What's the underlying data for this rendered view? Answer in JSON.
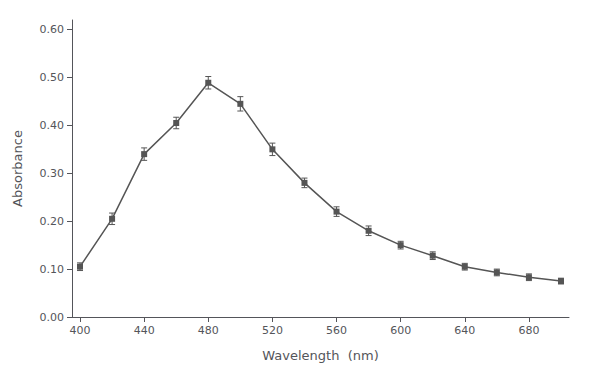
{
  "chart_data": {
    "type": "line",
    "x": [
      400,
      420,
      440,
      460,
      480,
      500,
      520,
      540,
      560,
      580,
      600,
      620,
      640,
      660,
      680,
      700
    ],
    "values": [
      0.105,
      0.205,
      0.34,
      0.405,
      0.489,
      0.445,
      0.35,
      0.28,
      0.22,
      0.18,
      0.15,
      0.128,
      0.105,
      0.093,
      0.083,
      0.075
    ],
    "errors": [
      0.008,
      0.012,
      0.013,
      0.012,
      0.013,
      0.015,
      0.013,
      0.01,
      0.01,
      0.01,
      0.008,
      0.008,
      0.007,
      0.007,
      0.007,
      0.006
    ],
    "xlabel": "Wavelength  (nm)",
    "ylabel": "Absorbance",
    "xlim": [
      395,
      705
    ],
    "ylim": [
      0.0,
      0.62
    ],
    "xticks": [
      400,
      440,
      480,
      520,
      560,
      600,
      640,
      680
    ],
    "yticks": [
      {
        "value": 0.0,
        "label": "0.00"
      },
      {
        "value": 0.1,
        "label": "0.10"
      },
      {
        "value": 0.2,
        "label": "0.20"
      },
      {
        "value": 0.3,
        "label": "0.30"
      },
      {
        "value": 0.4,
        "label": "0.40"
      },
      {
        "value": 0.5,
        "label": "0.50"
      },
      {
        "value": 0.6,
        "label": "0.60"
      }
    ],
    "marker": "square",
    "color": "#555555",
    "grid": false
  }
}
